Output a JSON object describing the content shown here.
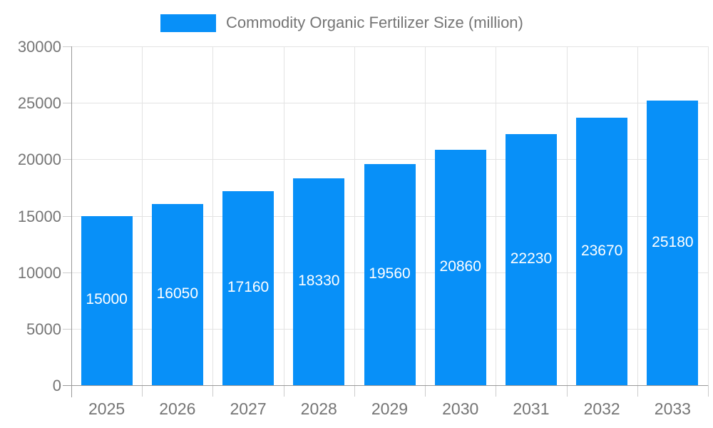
{
  "chart_data": {
    "type": "bar",
    "title": "Commodity Organic Fertilizer Size (million)",
    "legend": {
      "label": "Commodity Organic Fertilizer Size (million)",
      "position": "top"
    },
    "categories": [
      "2025",
      "2026",
      "2027",
      "2028",
      "2029",
      "2030",
      "2031",
      "2032",
      "2033"
    ],
    "series": [
      {
        "name": "Commodity Organic Fertilizer Size (million)",
        "values": [
          15000,
          16050,
          17160,
          18330,
          19560,
          20860,
          22230,
          23670,
          25180
        ]
      }
    ],
    "bar_labels_visible": true,
    "xlabel": "",
    "ylabel": "",
    "ylim": [
      0,
      30000
    ],
    "yticks": [
      0,
      5000,
      10000,
      15000,
      20000,
      25000,
      30000
    ],
    "grid": true,
    "colors": {
      "bar": "#0890f8",
      "grid": "#e3e3e3",
      "axis": "#999999",
      "tick": "#cccccc",
      "text": "#757575",
      "bar_label": "#ffffff"
    }
  }
}
